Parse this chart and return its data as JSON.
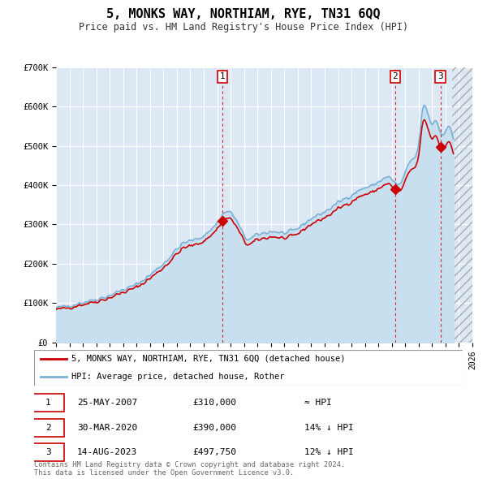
{
  "title": "5, MONKS WAY, NORTHIAM, RYE, TN31 6QQ",
  "subtitle": "Price paid vs. HM Land Registry's House Price Index (HPI)",
  "ylim": [
    0,
    700000
  ],
  "yticks": [
    0,
    100000,
    200000,
    300000,
    400000,
    500000,
    600000,
    700000
  ],
  "ytick_labels": [
    "£0",
    "£100K",
    "£200K",
    "£300K",
    "£400K",
    "£500K",
    "£600K",
    "£700K"
  ],
  "xlim_start": 1995,
  "xlim_end": 2026,
  "bg_color": "#dde8f5",
  "grid_color": "#ffffff",
  "sale_color": "#cc0000",
  "hpi_color": "#7ab0d4",
  "hpi_fill_color": "#c8dff0",
  "hatch_color": "#cccccc",
  "sale_label": "5, MONKS WAY, NORTHIAM, RYE, TN31 6QQ (detached house)",
  "hpi_label": "HPI: Average price, detached house, Rother",
  "transactions": [
    {
      "num": 1,
      "date": "25-MAY-2007",
      "price": 310000,
      "hpi_rel": "≈ HPI",
      "x": 2007.38
    },
    {
      "num": 2,
      "date": "30-MAR-2020",
      "price": 390000,
      "hpi_rel": "14% ↓ HPI",
      "x": 2020.25
    },
    {
      "num": 3,
      "date": "14-AUG-2023",
      "price": 497750,
      "hpi_rel": "12% ↓ HPI",
      "x": 2023.62
    }
  ],
  "hatch_start": 2024.5,
  "footer": "Contains HM Land Registry data © Crown copyright and database right 2024.\nThis data is licensed under the Open Government Licence v3.0."
}
